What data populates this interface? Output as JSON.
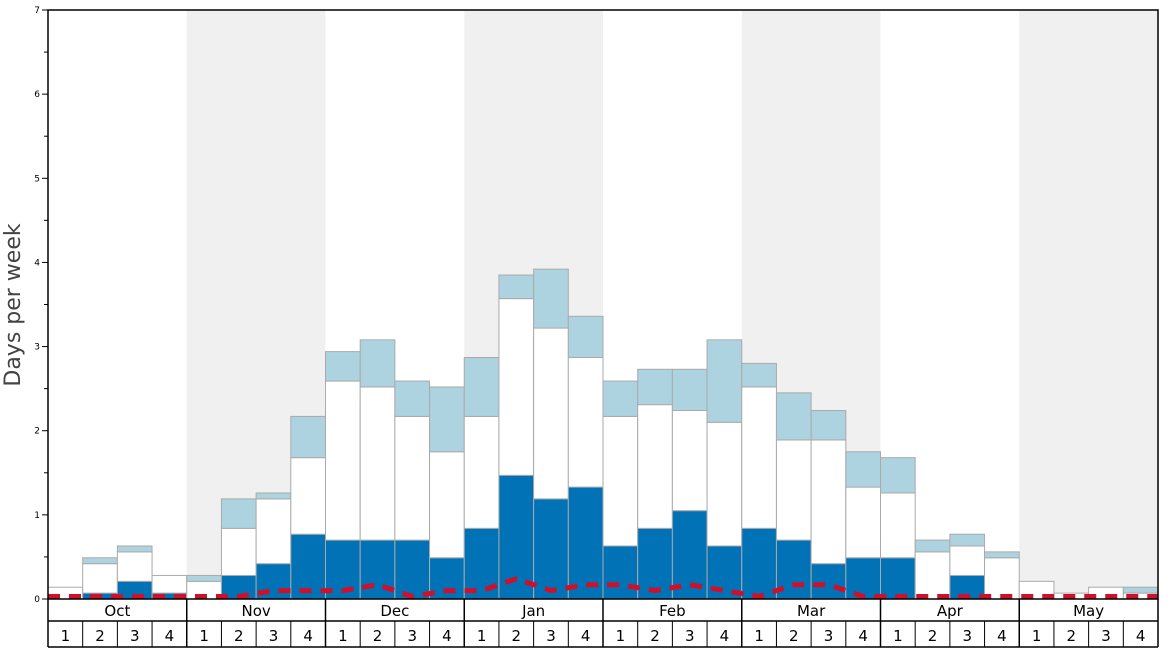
{
  "chart_data": {
    "type": "bar",
    "ylabel": "Days per week",
    "ylim": [
      0,
      7
    ],
    "yticks": [
      0,
      1,
      2,
      3,
      4,
      5,
      6,
      7
    ],
    "grid": false,
    "months": [
      "Oct",
      "Nov",
      "Dec",
      "Jan",
      "Feb",
      "Mar",
      "Apr",
      "May"
    ],
    "weeks": [
      "1",
      "2",
      "3",
      "4"
    ],
    "colors": {
      "dark": "#0072B5",
      "white": "#FFFFFF",
      "light": "#ADD3E0",
      "line": "#D0102A",
      "shade": "#F0F0F0",
      "edge": "#AAAAAA"
    },
    "series": [
      {
        "values": [
          0.0,
          0.07,
          0.21,
          0.07,
          0.0,
          0.28,
          0.42,
          0.77,
          0.7,
          0.7,
          0.7,
          0.49,
          0.84,
          1.47,
          1.19,
          1.33,
          0.63,
          0.84,
          1.05,
          0.63,
          0.84,
          0.7,
          0.42,
          0.49,
          0.49,
          0.0,
          0.28,
          0.0,
          0.0,
          0.0,
          0.0,
          0.0
        ]
      },
      {
        "values": [
          0.14,
          0.35,
          0.35,
          0.21,
          0.21,
          0.56,
          0.77,
          0.91,
          1.89,
          1.82,
          1.47,
          1.26,
          1.33,
          2.1,
          2.03,
          1.54,
          1.54,
          1.47,
          1.19,
          1.47,
          1.68,
          1.19,
          1.47,
          0.84,
          0.77,
          0.56,
          0.35,
          0.49,
          0.21,
          0.07,
          0.14,
          0.07
        ]
      },
      {
        "values": [
          0.0,
          0.07,
          0.07,
          0.0,
          0.07,
          0.35,
          0.07,
          0.49,
          0.35,
          0.56,
          0.42,
          0.77,
          0.7,
          0.28,
          0.7,
          0.49,
          0.42,
          0.42,
          0.49,
          0.98,
          0.28,
          0.56,
          0.35,
          0.42,
          0.42,
          0.14,
          0.14,
          0.07,
          0.0,
          0.0,
          0.0,
          0.07
        ]
      },
      {
        "type": "line",
        "values": [
          0.03,
          0.03,
          0.03,
          0.03,
          0.03,
          0.03,
          0.1,
          0.1,
          0.1,
          0.17,
          0.03,
          0.1,
          0.1,
          0.24,
          0.1,
          0.17,
          0.17,
          0.1,
          0.17,
          0.1,
          0.03,
          0.17,
          0.17,
          0.03,
          0.03,
          0.03,
          0.03,
          0.03,
          0.03,
          0.03,
          0.03,
          0.03
        ]
      }
    ]
  }
}
